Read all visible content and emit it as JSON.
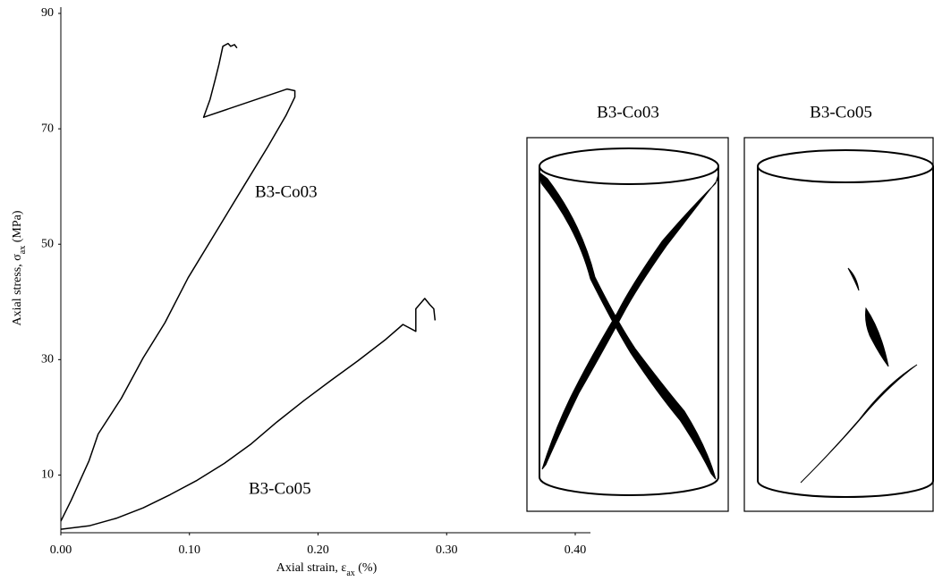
{
  "chart_data": {
    "type": "line",
    "x_label": [
      "Axial strain, ε",
      "ax",
      " (%)"
    ],
    "y_label": [
      "Axial stress, σ",
      "ax",
      " (MPa)"
    ],
    "xlim": [
      0,
      0.4
    ],
    "ylim": [
      0,
      90
    ],
    "xticks": [
      {
        "value": 0,
        "label": "0.00"
      },
      {
        "value": 0.1,
        "label": "0.10"
      },
      {
        "value": 0.2,
        "label": "0.20"
      },
      {
        "value": 0.3,
        "label": "0.30"
      },
      {
        "value": 0.4,
        "label": "0.40"
      }
    ],
    "yticks": [
      10,
      30,
      50,
      70,
      90
    ],
    "series": [
      {
        "name": "B3-Co03",
        "color": "#000000",
        "x": [
          0,
          0.008,
          0.022,
          0.029,
          0.047,
          0.064,
          0.081,
          0.099,
          0.12,
          0.141,
          0.161,
          0.175,
          0.182,
          0.182,
          0.176,
          0.111,
          0.116,
          0.12,
          0.123,
          0.126,
          0.13,
          0.132,
          0.135,
          0.137
        ],
        "values": [
          2,
          5.6,
          12.5,
          17.1,
          23.3,
          30.3,
          36.4,
          44.2,
          51.9,
          59.6,
          66.9,
          72.3,
          75.5,
          76.6,
          76.9,
          72,
          75.1,
          78.5,
          81.2,
          84.3,
          84.8,
          84.3,
          84.6,
          84
        ]
      },
      {
        "name": "B3-Co05",
        "color": "#000000",
        "x": [
          0,
          0.022,
          0.043,
          0.064,
          0.085,
          0.106,
          0.127,
          0.148,
          0.168,
          0.189,
          0.21,
          0.231,
          0.252,
          0.266,
          0.276,
          0.276,
          0.283,
          0.287,
          0.29,
          0.291
        ],
        "values": [
          0.6,
          1.2,
          2.5,
          4.3,
          6.6,
          9.1,
          12,
          15.4,
          19.2,
          22.9,
          26.4,
          29.8,
          33.4,
          36.1,
          34.9,
          38.8,
          40.6,
          39.5,
          38.8,
          36.8
        ]
      }
    ]
  },
  "specimens": [
    {
      "label": "B3-Co03"
    },
    {
      "label": "B3-Co05"
    }
  ]
}
